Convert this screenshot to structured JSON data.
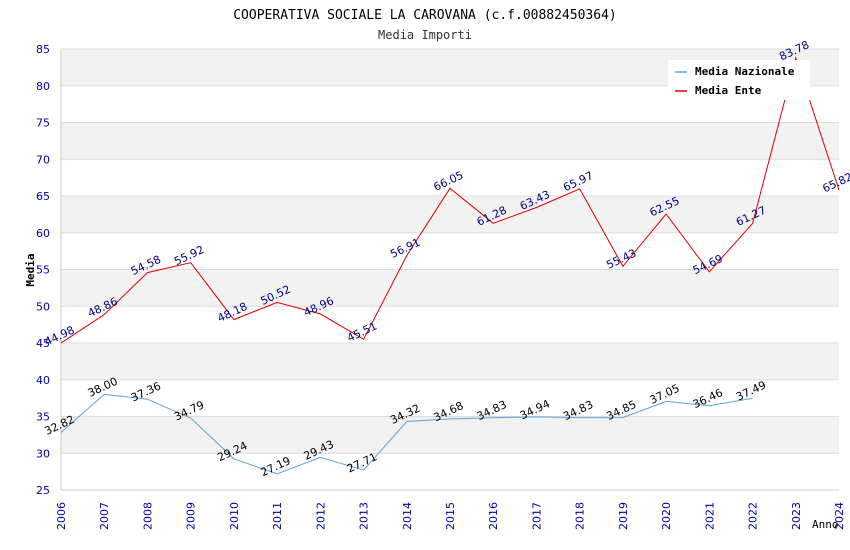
{
  "chart_data": {
    "type": "line",
    "title": "COOPERATIVA SOCIALE LA CAROVANA (c.f.00882450364)",
    "subtitle": "Media Importi",
    "xlabel": "Anno",
    "ylabel": "Media",
    "ylim": [
      25,
      85
    ],
    "y_ticks": [
      25,
      30,
      35,
      40,
      45,
      50,
      55,
      60,
      65,
      70,
      75,
      80,
      85
    ],
    "x": [
      "2006",
      "2007",
      "2008",
      "2009",
      "2010",
      "2011",
      "2012",
      "2013",
      "2014",
      "2015",
      "2016",
      "2017",
      "2018",
      "2019",
      "2020",
      "2021",
      "2022",
      "2023",
      "2024"
    ],
    "grid": true,
    "legend_position": "top-right",
    "series": [
      {
        "name": "Media Nazionale",
        "color": "#5aa5dc",
        "label_color": "#000000",
        "values": [
          32.82,
          38.0,
          37.36,
          34.79,
          29.24,
          27.19,
          29.43,
          27.71,
          34.32,
          34.68,
          34.83,
          34.94,
          34.83,
          34.85,
          37.05,
          36.46,
          37.49,
          null,
          null
        ],
        "labels": [
          "32.82",
          "38.00",
          "37.36",
          "34.79",
          "29.24",
          "27.19",
          "29.43",
          "27.71",
          "34.32",
          "34.68",
          "34.83",
          "34.94",
          "34.83",
          "34.85",
          "37.05",
          "36.46",
          "37.49",
          null,
          null
        ]
      },
      {
        "name": "Media Ente",
        "color": "#dd0000",
        "label_color": "#000080",
        "values": [
          44.98,
          48.86,
          54.58,
          55.92,
          48.18,
          50.52,
          48.96,
          45.51,
          56.91,
          66.05,
          61.28,
          63.43,
          65.97,
          55.43,
          62.55,
          54.69,
          61.27,
          83.78,
          65.82
        ],
        "labels": [
          "44.98",
          "48.86",
          "54.58",
          "55.92",
          "48.18",
          "50.52",
          "48.96",
          "45.51",
          "56.91",
          "66.05",
          "61.28",
          "63.43",
          "65.97",
          "55.43",
          "62.55",
          "54.69",
          "61.27",
          "83.78",
          "65.82"
        ]
      }
    ]
  }
}
